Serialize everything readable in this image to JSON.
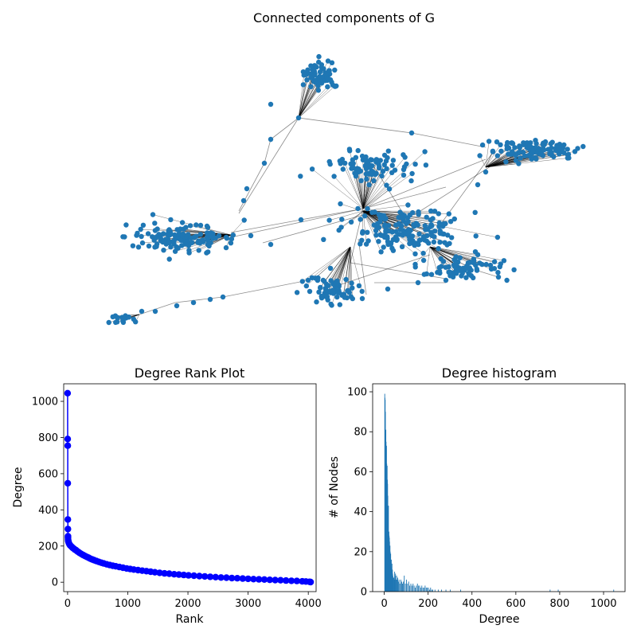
{
  "figure": {
    "network_title": "Connected components of G"
  },
  "chart_data": [
    {
      "type": "scatter",
      "id": "rank",
      "title": "Degree Rank Plot",
      "xlabel": "Rank",
      "ylabel": "Degree",
      "xlim": [
        -65,
        4130
      ],
      "ylim": [
        -52,
        1097
      ],
      "xticks": [
        0,
        1000,
        2000,
        3000,
        4000
      ],
      "yticks": [
        0,
        200,
        400,
        600,
        800,
        1000
      ],
      "color": "#0000ff",
      "points": [
        [
          0,
          1045
        ],
        [
          1,
          792
        ],
        [
          2,
          755
        ],
        [
          3,
          547
        ],
        [
          4,
          347
        ],
        [
          5,
          294
        ],
        [
          6,
          254
        ],
        [
          7,
          245
        ],
        [
          8,
          235
        ],
        [
          10,
          229
        ],
        [
          15,
          224
        ],
        [
          20,
          218
        ],
        [
          30,
          210
        ],
        [
          40,
          205
        ],
        [
          55,
          200
        ],
        [
          70,
          195
        ],
        [
          85,
          190
        ],
        [
          100,
          186
        ],
        [
          120,
          181
        ],
        [
          140,
          177
        ],
        [
          160,
          171
        ],
        [
          180,
          167
        ],
        [
          200,
          162
        ],
        [
          230,
          156
        ],
        [
          260,
          150
        ],
        [
          290,
          145
        ],
        [
          320,
          140
        ],
        [
          350,
          135
        ],
        [
          380,
          130
        ],
        [
          410,
          126
        ],
        [
          440,
          122
        ],
        [
          480,
          117
        ],
        [
          520,
          112
        ],
        [
          560,
          108
        ],
        [
          600,
          104
        ],
        [
          650,
          99
        ],
        [
          700,
          95
        ],
        [
          750,
          91
        ],
        [
          800,
          88
        ],
        [
          860,
          84
        ],
        [
          920,
          80
        ],
        [
          980,
          76
        ],
        [
          1040,
          73
        ],
        [
          1100,
          70
        ],
        [
          1170,
          67
        ],
        [
          1240,
          64
        ],
        [
          1310,
          61
        ],
        [
          1380,
          58
        ],
        [
          1450,
          55
        ],
        [
          1530,
          52
        ],
        [
          1610,
          49
        ],
        [
          1690,
          47
        ],
        [
          1770,
          44
        ],
        [
          1850,
          42
        ],
        [
          1930,
          40
        ],
        [
          2010,
          38
        ],
        [
          2100,
          36
        ],
        [
          2190,
          34
        ],
        [
          2280,
          32
        ],
        [
          2370,
          30
        ],
        [
          2460,
          28
        ],
        [
          2550,
          26
        ],
        [
          2640,
          25
        ],
        [
          2730,
          23
        ],
        [
          2820,
          22
        ],
        [
          2910,
          20
        ],
        [
          3000,
          19
        ],
        [
          3090,
          17
        ],
        [
          3180,
          16
        ],
        [
          3270,
          15
        ],
        [
          3360,
          13
        ],
        [
          3450,
          12
        ],
        [
          3540,
          11
        ],
        [
          3630,
          9
        ],
        [
          3720,
          8
        ],
        [
          3810,
          7
        ],
        [
          3900,
          5
        ],
        [
          3960,
          4
        ],
        [
          4020,
          2
        ],
        [
          4039,
          1
        ]
      ]
    },
    {
      "type": "bar",
      "id": "hist",
      "title": "Degree histogram",
      "xlabel": "Degree",
      "ylabel": "# of Nodes",
      "xlim": [
        -53,
        1098
      ],
      "ylim": [
        0,
        104
      ],
      "xticks": [
        0,
        200,
        400,
        600,
        800,
        1000
      ],
      "yticks": [
        0,
        20,
        40,
        60,
        80,
        100
      ],
      "color": "#1f77b4",
      "degrees": [
        1,
        2,
        3,
        4,
        5,
        6,
        7,
        8,
        9,
        10,
        11,
        12,
        13,
        14,
        15,
        16,
        17,
        18,
        19,
        20,
        21,
        22,
        23,
        24,
        25,
        26,
        27,
        28,
        29,
        30,
        31,
        32,
        33,
        34,
        35,
        36,
        37,
        38,
        39,
        40,
        42,
        44,
        46,
        48,
        50,
        52,
        55,
        58,
        60,
        63,
        66,
        70,
        74,
        78,
        82,
        86,
        90,
        95,
        100,
        105,
        110,
        115,
        120,
        125,
        130,
        135,
        140,
        145,
        150,
        155,
        160,
        165,
        170,
        175,
        180,
        185,
        190,
        195,
        200,
        205,
        210,
        215,
        220,
        230,
        245,
        260,
        280,
        300,
        347,
        755,
        792,
        1045
      ],
      "counts": [
        99,
        97,
        96,
        90,
        81,
        81,
        75,
        72,
        73,
        64,
        60,
        63,
        56,
        54,
        48,
        40,
        36,
        43,
        30,
        30,
        28,
        27,
        25,
        22,
        23,
        20,
        17,
        19,
        15,
        14,
        16,
        12,
        10,
        14,
        10,
        11,
        9,
        8,
        7,
        7,
        7,
        6,
        10,
        8,
        9,
        6,
        8,
        6,
        7,
        5,
        6,
        4,
        6,
        5,
        4,
        5,
        8,
        4,
        6,
        4,
        5,
        3,
        4,
        3,
        4,
        3,
        2,
        3,
        4,
        3,
        3,
        2,
        3,
        2,
        2,
        3,
        2,
        2,
        2,
        1,
        2,
        1,
        1,
        1,
        1,
        1,
        1,
        1,
        1,
        1,
        1,
        1
      ]
    }
  ]
}
